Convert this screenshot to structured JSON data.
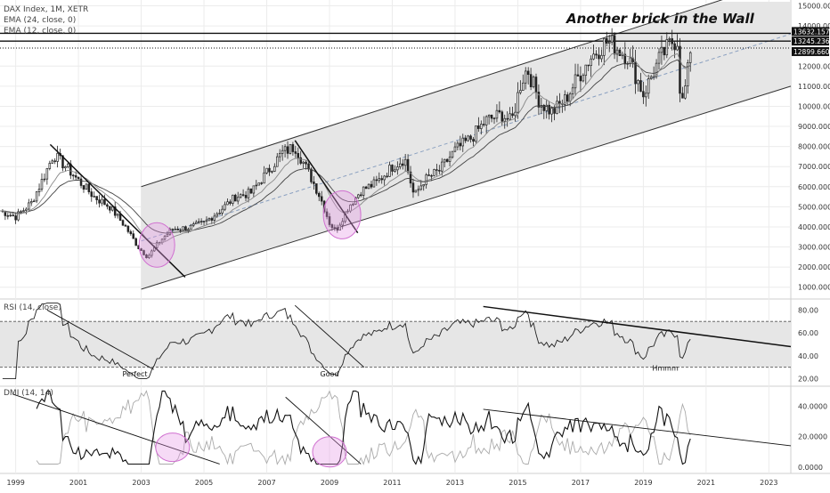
{
  "chart_data": {
    "type": "candlestick",
    "legend": [
      "DAX Index, 1M, XETR",
      "EMA (24, close, 0)",
      "EMA (12, close, 0)"
    ],
    "title": "Another brick in the Wall",
    "x_ticks": [
      "1999",
      "2001",
      "2003",
      "2005",
      "2007",
      "2009",
      "2011",
      "2013",
      "2015",
      "2017",
      "2019",
      "2021",
      "2023"
    ],
    "price_axis": {
      "ticks": [
        1000,
        2000,
        3000,
        4000,
        5000,
        6000,
        7000,
        8000,
        9000,
        10000,
        11000,
        12000,
        14000,
        15000
      ],
      "tick_labels": [
        "1000.000",
        "2000.000",
        "3000.000",
        "4000.000",
        "5000.000",
        "6000.000",
        "7000.000",
        "8000.000",
        "9000.000",
        "10000.000",
        "11000.000",
        "12000.000",
        "14000.000",
        "15000.000"
      ],
      "ylim": [
        500,
        15200
      ],
      "levels": [
        {
          "value": 13632.157,
          "label": "13632.157",
          "style": "solid"
        },
        {
          "value": 13245.236,
          "label": "13245.236",
          "style": "solid"
        },
        {
          "value": 12899.66,
          "label": "12899.660",
          "style": "dotted"
        }
      ]
    },
    "price_series_approx": [
      [
        1998.5,
        4800
      ],
      [
        1999.0,
        4500
      ],
      [
        1999.5,
        5200
      ],
      [
        1999.9,
        6500
      ],
      [
        2000.2,
        7600
      ],
      [
        2000.6,
        7000
      ],
      [
        2001.0,
        6300
      ],
      [
        2001.5,
        5500
      ],
      [
        2002.0,
        5000
      ],
      [
        2002.5,
        4000
      ],
      [
        2002.9,
        3000
      ],
      [
        2003.2,
        2500
      ],
      [
        2003.6,
        3300
      ],
      [
        2004.0,
        3900
      ],
      [
        2004.5,
        3950
      ],
      [
        2005.0,
        4200
      ],
      [
        2005.5,
        4800
      ],
      [
        2006.0,
        5500
      ],
      [
        2006.5,
        5700
      ],
      [
        2007.0,
        6700
      ],
      [
        2007.5,
        7700
      ],
      [
        2007.9,
        8000
      ],
      [
        2008.3,
        6800
      ],
      [
        2008.7,
        5500
      ],
      [
        2009.0,
        4200
      ],
      [
        2009.2,
        3800
      ],
      [
        2009.6,
        5000
      ],
      [
        2010.0,
        5800
      ],
      [
        2010.5,
        6200
      ],
      [
        2011.0,
        7000
      ],
      [
        2011.4,
        7400
      ],
      [
        2011.7,
        5500
      ],
      [
        2012.0,
        6300
      ],
      [
        2012.5,
        6800
      ],
      [
        2013.0,
        7800
      ],
      [
        2013.5,
        8400
      ],
      [
        2014.0,
        9300
      ],
      [
        2014.5,
        9600
      ],
      [
        2014.8,
        9200
      ],
      [
        2015.1,
        11200
      ],
      [
        2015.3,
        11900
      ],
      [
        2015.7,
        10200
      ],
      [
        2016.1,
        9700
      ],
      [
        2016.5,
        10300
      ],
      [
        2016.9,
        11400
      ],
      [
        2017.3,
        12400
      ],
      [
        2017.8,
        13200
      ],
      [
        2018.0,
        13100
      ],
      [
        2018.5,
        12500
      ],
      [
        2018.9,
        11000
      ],
      [
        2019.0,
        10600
      ],
      [
        2019.5,
        12300
      ],
      [
        2019.9,
        13200
      ],
      [
        2020.1,
        13300
      ],
      [
        2020.2,
        9800
      ],
      [
        2020.4,
        11500
      ],
      [
        2020.5,
        12900
      ]
    ],
    "rsi": {
      "label": "RSI (14, close)",
      "ticks": [
        20,
        40,
        60,
        80
      ],
      "tick_labels": [
        "20.00",
        "40.00",
        "60.00",
        "80.00"
      ],
      "band": [
        30,
        70
      ],
      "ylim": [
        15,
        88
      ],
      "annotations": [
        {
          "text": "Perfect",
          "x": 2002.8,
          "y": 22
        },
        {
          "text": "Good",
          "x": 2009.0,
          "y": 22
        },
        {
          "text": "Hmmm",
          "x": 2019.7,
          "y": 27
        }
      ]
    },
    "dmi": {
      "label": "DMI (14, 14)",
      "ticks": [
        0,
        20,
        40
      ],
      "tick_labels": [
        "0.0000",
        "20.0000",
        "40.0000"
      ],
      "ylim": [
        -3,
        52
      ]
    }
  }
}
